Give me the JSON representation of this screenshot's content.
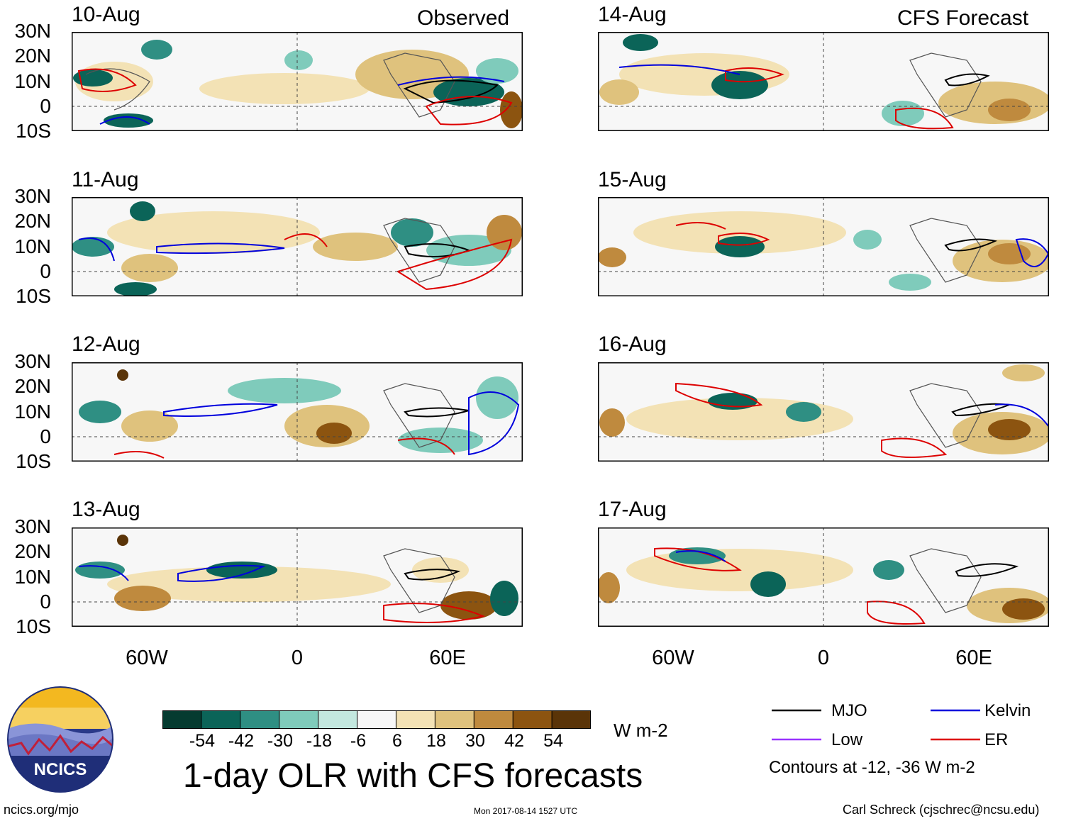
{
  "headers": {
    "observed": "Observed",
    "forecast": "CFS Forecast"
  },
  "panels": {
    "observed": [
      {
        "date": "10-Aug"
      },
      {
        "date": "11-Aug"
      },
      {
        "date": "12-Aug"
      },
      {
        "date": "13-Aug"
      }
    ],
    "forecast": [
      {
        "date": "14-Aug"
      },
      {
        "date": "15-Aug"
      },
      {
        "date": "16-Aug"
      },
      {
        "date": "17-Aug"
      }
    ]
  },
  "axes": {
    "lat_labels": [
      "30N",
      "20N",
      "10N",
      "0",
      "10S"
    ],
    "lon_labels": [
      "60W",
      "0",
      "60E"
    ],
    "lon_range": [
      -90,
      90
    ],
    "lat_range": [
      -10,
      30
    ]
  },
  "colorbar": {
    "labels": [
      "-54",
      "-42",
      "-30",
      "-18",
      "-6",
      "6",
      "18",
      "30",
      "42",
      "54"
    ],
    "colors": [
      "#053b30",
      "#0b6458",
      "#2f8f83",
      "#7fcbbb",
      "#c3e8df",
      "#f7f7f7",
      "#f3e2b5",
      "#dfc27d",
      "#bf8a3e",
      "#8c5410",
      "#5a3408"
    ],
    "units": "W m-2"
  },
  "legend": {
    "items": [
      {
        "label": "MJO",
        "color": "#000000"
      },
      {
        "label": "Kelvin",
        "color": "#0000dd"
      },
      {
        "label": "Low",
        "color": "#9933ff"
      },
      {
        "label": "ER",
        "color": "#dd0000"
      }
    ],
    "note": "Contours at -12, -36 W m-2"
  },
  "title": "1-day OLR with CFS forecasts",
  "logo": {
    "text": "NCICS"
  },
  "footer": {
    "left": "ncics.org/mjo",
    "center": "Mon 2017-08-14 1527 UTC",
    "right": "Carl Schreck (cjschrec@ncsu.edu)"
  }
}
